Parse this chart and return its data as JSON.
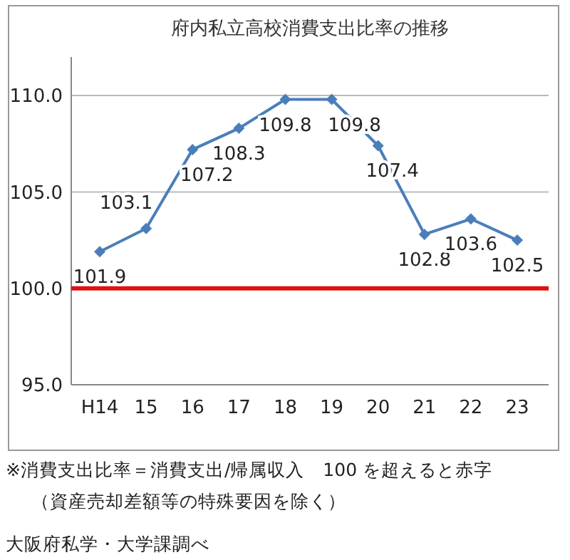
{
  "chart_data": {
    "type": "line",
    "title": "府内私立高校消費支出比率の推移",
    "categories": [
      "H14",
      "15",
      "16",
      "17",
      "18",
      "19",
      "20",
      "21",
      "22",
      "23"
    ],
    "series": [
      {
        "color": "#4a7ebb",
        "values": [
          101.9,
          103.1,
          107.2,
          108.3,
          109.8,
          109.8,
          107.4,
          102.8,
          103.6,
          102.5
        ]
      }
    ],
    "ylim": [
      95,
      112
    ],
    "yticks": [
      {
        "value": 95,
        "label": "95.0"
      },
      {
        "value": 100,
        "label": "100.0"
      },
      {
        "value": 105,
        "label": "105.0"
      },
      {
        "value": 110,
        "label": "110.0"
      }
    ],
    "grid": "y",
    "marker": "diamond",
    "line_style": "solid",
    "data_labels": true,
    "ref_lines": [
      {
        "axis": "y",
        "value": 100,
        "color": "#e01010"
      }
    ],
    "annotations": [
      "※消費支出比率＝消費支出/帰属収入　100 を超えると赤字",
      "（資産売却差額等の特殊要因を除く）",
      "大阪府私学・大学課調べ"
    ]
  }
}
